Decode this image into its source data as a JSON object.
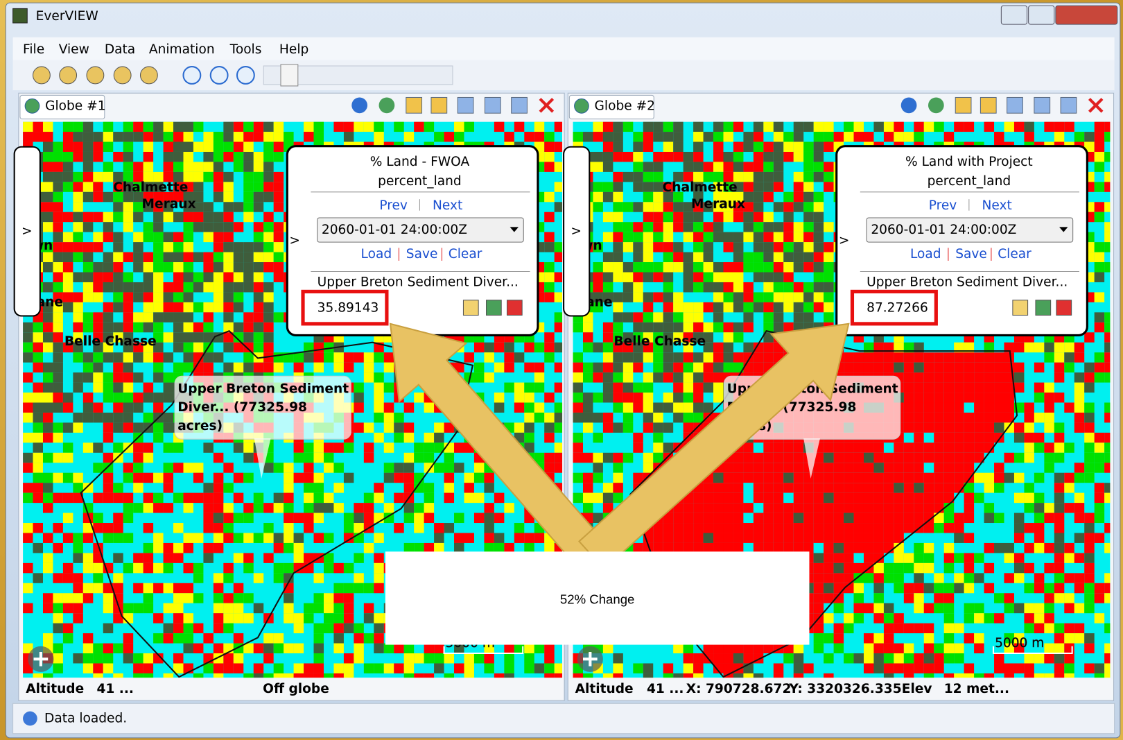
{
  "window": {
    "title": "EverVIEW"
  },
  "menu": [
    "File",
    "View",
    "Data",
    "Animation",
    "Tools",
    "Help"
  ],
  "panels": [
    {
      "tab": "Globe #1",
      "popup": {
        "title": "% Land - FWOA",
        "variable": "percent_land",
        "prev": "Prev",
        "next": "Next",
        "date": "2060-01-01 24:00:00Z",
        "load": "Load",
        "save": "Save",
        "clear": "Clear",
        "layer": "Upper Breton Sediment Diver...",
        "value": 35.89143
      },
      "map_labels": [
        "Chalmette",
        "Meraux",
        "own",
        "hlane",
        "Belle Chasse"
      ],
      "tooltip": [
        "Upper Breton Sediment",
        "Diver... (77325.98",
        "acres)"
      ],
      "scale": "5000 m",
      "status": [
        "Altitude",
        "41 ...",
        "Off globe"
      ]
    },
    {
      "tab": "Globe #2",
      "popup": {
        "title": "% Land with Project",
        "variable": "percent_land",
        "prev": "Prev",
        "next": "Next",
        "date": "2060-01-01 24:00:00Z",
        "load": "Load",
        "save": "Save",
        "clear": "Clear",
        "layer": "Upper Breton Sediment Diver...",
        "value": 87.27266
      },
      "map_labels": [
        "Chalmette",
        "Meraux",
        "own",
        "hlane",
        "Belle Chasse"
      ],
      "tooltip": [
        "Upper Breton Sediment",
        "Diver... (77325.98",
        "acres)"
      ],
      "scale": "5000 m",
      "status": [
        "Altitude",
        "41 ...",
        "X: 790728.672",
        "Y: 3320326.335",
        "Elev",
        "12 met..."
      ]
    }
  ],
  "status_bar": "Data loaded.",
  "annotation": "52% Change"
}
